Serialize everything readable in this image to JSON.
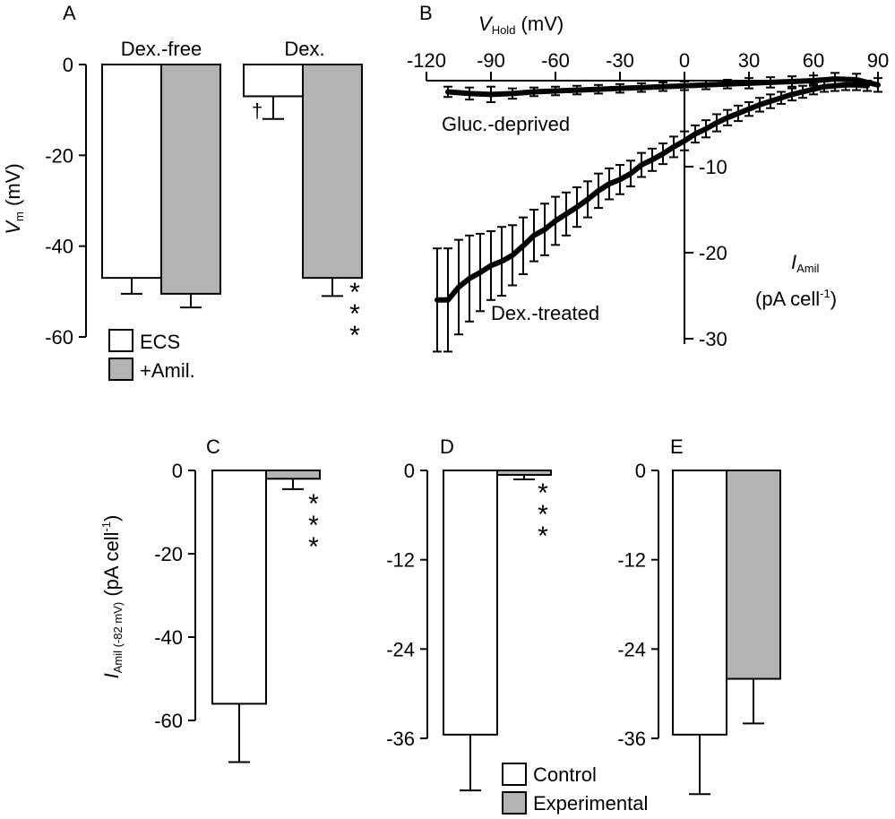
{
  "colors": {
    "empty": "#ffffff",
    "filled": "#b3b3b3",
    "ink": "#000000"
  },
  "chart_data": [
    {
      "panel": "A",
      "type": "bar",
      "ylabel_main": "V",
      "ylabel_sub": "m",
      "ylabel_unit": " (mV)",
      "ylim": [
        -60,
        0
      ],
      "yticks": [
        0,
        -20,
        -40,
        -60
      ],
      "groups": [
        "Dex.-free",
        "Dex."
      ],
      "series": [
        {
          "name": "ECS",
          "fill": "empty",
          "values": [
            -47,
            -7
          ],
          "errors": [
            3.5,
            5
          ]
        },
        {
          "name": "+Amil.",
          "fill": "filled",
          "values": [
            -50.5,
            -47
          ],
          "errors": [
            3,
            4
          ]
        }
      ],
      "annotations": {
        "dagger": "†",
        "stars": [
          "*",
          "*",
          "*"
        ]
      }
    },
    {
      "panel": "B",
      "type": "line",
      "xlabel_main": "V",
      "xlabel_sub": "Hold",
      "xlabel_unit": " (mV)",
      "ylabel_main": "I",
      "ylabel_sub": "Amil",
      "ylabel_unit_pre": "(pA cell",
      "ylabel_unit_sup": "-1",
      "ylabel_unit_post": ")",
      "xlim": [
        -120,
        90
      ],
      "ylim": [
        -30,
        0
      ],
      "xticks": [
        -120,
        -90,
        -60,
        -30,
        0,
        30,
        60,
        90
      ],
      "yticks": [
        -10,
        -20,
        -30
      ],
      "series": [
        {
          "name": "Gluc.-deprived",
          "x": [
            -110,
            -100,
            -90,
            -80,
            -70,
            -60,
            -50,
            -40,
            -30,
            -20,
            -10,
            0,
            10,
            20,
            30,
            40,
            50,
            60,
            70,
            80,
            90
          ],
          "y": [
            -1.3,
            -1.5,
            -1.6,
            -1.5,
            -1.3,
            -1.2,
            -1.1,
            -1.0,
            -0.9,
            -0.8,
            -0.7,
            -0.6,
            -0.5,
            -0.4,
            -0.3,
            -0.2,
            -0.1,
            0.0,
            0.2,
            0.1,
            -0.5
          ],
          "errors": [
            0.6,
            0.7,
            0.9,
            0.6,
            0.5,
            0.5,
            0.5,
            0.5,
            0.5,
            0.5,
            0.5,
            0.5,
            0.5,
            0.5,
            0.6,
            0.6,
            0.6,
            0.6,
            0.7,
            0.7,
            0.8
          ]
        },
        {
          "name": "Dex.-treated",
          "x": [
            -115,
            -110,
            -105,
            -100,
            -95,
            -90,
            -85,
            -80,
            -75,
            -70,
            -65,
            -60,
            -55,
            -50,
            -45,
            -40,
            -35,
            -30,
            -25,
            -20,
            -15,
            -10,
            -5,
            0,
            5,
            10,
            15,
            20,
            25,
            30,
            35,
            40,
            45,
            50,
            55,
            60,
            65,
            70,
            75,
            80,
            85
          ],
          "y": [
            -25.5,
            -25.5,
            -24.0,
            -23.0,
            -22.3,
            -21.5,
            -21.0,
            -20.3,
            -19.2,
            -18.0,
            -17.3,
            -16.3,
            -15.5,
            -14.7,
            -13.8,
            -12.8,
            -12.0,
            -11.5,
            -10.8,
            -9.8,
            -9.2,
            -8.5,
            -7.7,
            -7.0,
            -6.2,
            -5.6,
            -4.9,
            -4.3,
            -3.8,
            -3.3,
            -2.8,
            -2.4,
            -2.0,
            -1.6,
            -1.3,
            -1.0,
            -0.7,
            -0.6,
            -0.5,
            -0.5,
            -0.6
          ],
          "errors": [
            6.0,
            6.0,
            5.5,
            5.0,
            4.5,
            4.0,
            4.0,
            3.5,
            3.3,
            3.0,
            3.0,
            2.8,
            2.5,
            2.3,
            2.1,
            2.0,
            1.8,
            1.7,
            1.5,
            1.4,
            1.3,
            1.2,
            1.2,
            1.1,
            1.0,
            1.0,
            1.0,
            0.9,
            0.9,
            0.8,
            0.8,
            0.8,
            0.7,
            0.7,
            0.7,
            0.6,
            0.6,
            0.6,
            0.6,
            0.6,
            0.6
          ]
        }
      ]
    },
    {
      "panel": "C",
      "type": "bar",
      "ylabel_main": "I",
      "ylabel_sub": "Amil (-82 mV)",
      "ylabel_unit_pre": " (pA cell",
      "ylabel_unit_sup": "-1",
      "ylabel_unit_post": ")",
      "ylim": [
        -60,
        0
      ],
      "yticks": [
        0,
        -20,
        -40,
        -60
      ],
      "series": [
        {
          "name": "Control",
          "fill": "empty",
          "value": -56,
          "error": 14
        },
        {
          "name": "Experimental",
          "fill": "filled",
          "value": -2,
          "error": 2.5
        }
      ],
      "annotations": {
        "stars": [
          "*",
          "*",
          "*"
        ]
      }
    },
    {
      "panel": "D",
      "type": "bar",
      "ylim": [
        -36,
        0
      ],
      "yticks": [
        0,
        -12,
        -24,
        -36
      ],
      "series": [
        {
          "name": "Control",
          "fill": "empty",
          "value": -35.5,
          "error": 7.5
        },
        {
          "name": "Experimental",
          "fill": "filled",
          "value": -0.6,
          "error": 0.6
        }
      ],
      "annotations": {
        "stars": [
          "*",
          "*",
          "*"
        ]
      }
    },
    {
      "panel": "E",
      "type": "bar",
      "ylim": [
        -36,
        0
      ],
      "yticks": [
        0,
        -12,
        -24,
        -36
      ],
      "series": [
        {
          "name": "Control",
          "fill": "empty",
          "value": -35.5,
          "error": 8
        },
        {
          "name": "Experimental",
          "fill": "filled",
          "value": -28,
          "error": 6
        }
      ]
    }
  ],
  "legend_bottom": [
    {
      "label": "Control",
      "fill": "empty"
    },
    {
      "label": "Experimental",
      "fill": "filled"
    }
  ],
  "legend_A": [
    {
      "label": "ECS",
      "fill": "empty"
    },
    {
      "label": "+Amil.",
      "fill": "filled"
    }
  ]
}
